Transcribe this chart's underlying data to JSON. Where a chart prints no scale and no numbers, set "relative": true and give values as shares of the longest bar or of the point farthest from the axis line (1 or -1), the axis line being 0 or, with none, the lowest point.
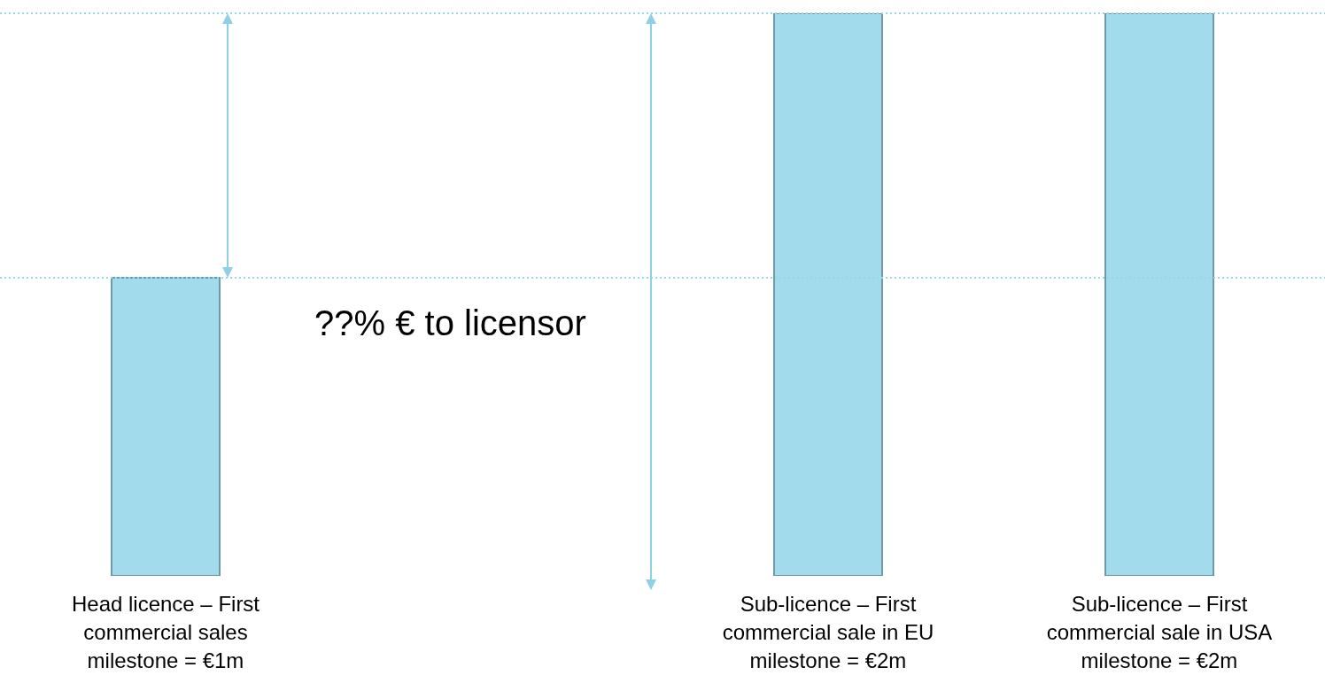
{
  "chart_data": {
    "type": "bar",
    "relative": true,
    "categories": [
      "Head licence – First commercial sales milestone = €1m",
      null,
      "Sub-licence – First commercial sale in EU milestone = €2m",
      "Sub-licence – First commercial sale in USA milestone = €2m"
    ],
    "values": [
      0.53,
      null,
      1,
      1
    ],
    "color": "#a2dbec",
    "ref_lines": [
      {
        "axis": "y",
        "value": 1,
        "color": "#9dd5e8",
        "line_style": "dotted"
      },
      {
        "axis": "y",
        "value": 0.53,
        "color": "#9dd5e8",
        "line_style": "dotted"
      }
    ],
    "annotations": [
      "??% € to licensor"
    ],
    "grid": false,
    "legend": false
  }
}
